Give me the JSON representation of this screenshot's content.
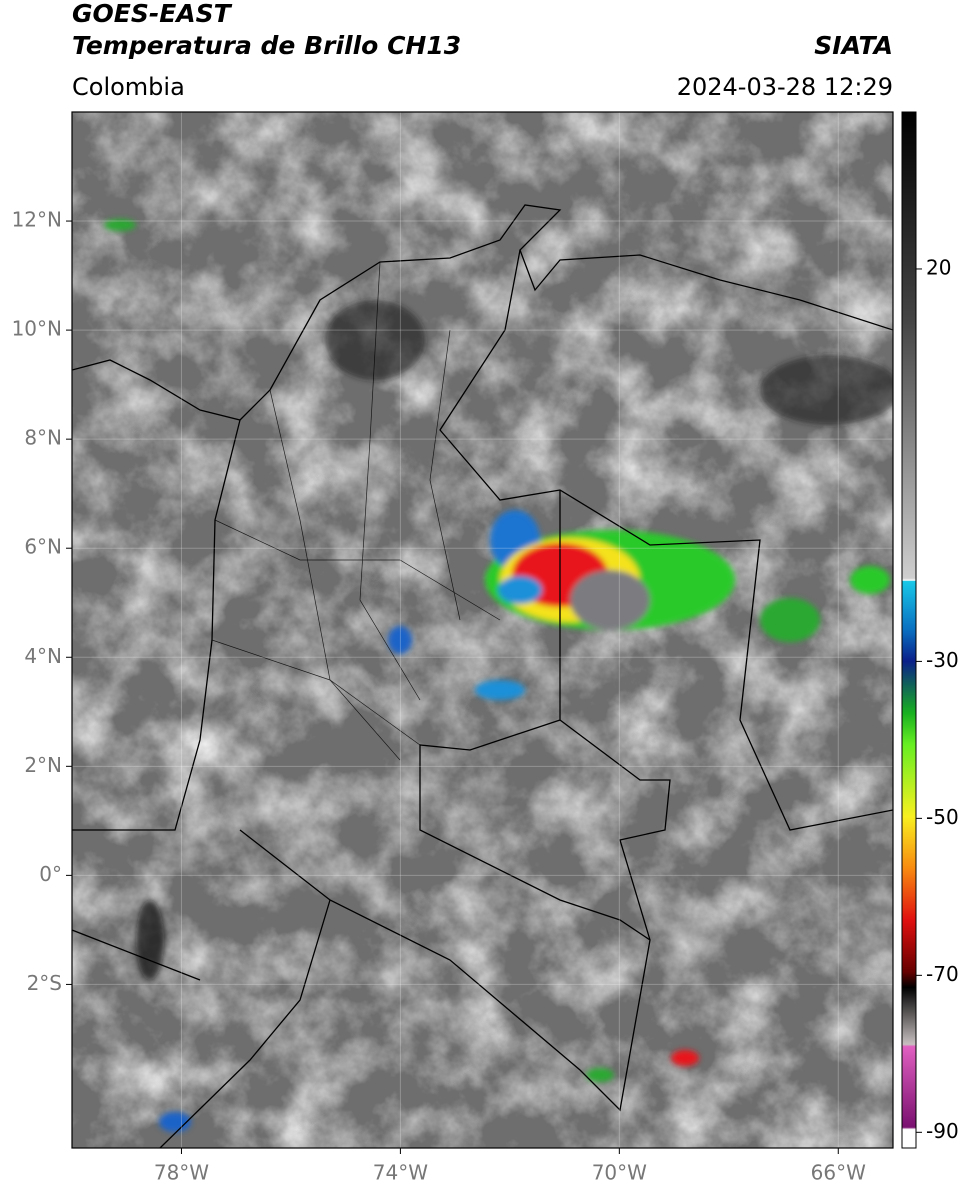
{
  "header": {
    "title_line1": "GOES-EAST",
    "title_line2": "Temperatura de Brillo CH13",
    "source": "SIATA",
    "region": "Colombia",
    "datetime": "2024-03-28 12:29"
  },
  "map": {
    "lonlim": [
      -80,
      -65
    ],
    "latlim": [
      -5,
      14
    ],
    "lon_ticks": [
      {
        "value": -78,
        "label": "78°W"
      },
      {
        "value": -74,
        "label": "74°W"
      },
      {
        "value": -70,
        "label": "70°W"
      },
      {
        "value": -66,
        "label": "66°W"
      }
    ],
    "lat_ticks": [
      {
        "value": 12,
        "label": "12°N"
      },
      {
        "value": 10,
        "label": "10°N"
      },
      {
        "value": 8,
        "label": "8°N"
      },
      {
        "value": 6,
        "label": "6°N"
      },
      {
        "value": 4,
        "label": "4°N"
      },
      {
        "value": 2,
        "label": "2°N"
      },
      {
        "value": 0,
        "label": "0°"
      },
      {
        "value": -2,
        "label": "2°S"
      }
    ]
  },
  "colorbar": {
    "lim": [
      -92,
      40
    ],
    "ticks": [
      20,
      -30,
      -50,
      -70,
      -90
    ]
  }
}
